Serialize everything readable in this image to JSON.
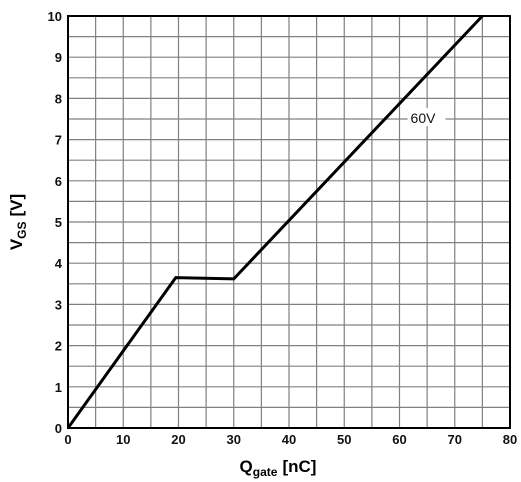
{
  "chart_data": {
    "type": "line",
    "xlabel": {
      "main": "Q",
      "sub": "gate",
      "unit": "[nC]"
    },
    "ylabel": {
      "main": "V",
      "sub": "GS",
      "unit": "[V]"
    },
    "xlim": [
      0,
      80
    ],
    "ylim": [
      0,
      10
    ],
    "x_ticks": [
      0,
      10,
      20,
      30,
      40,
      50,
      60,
      70,
      80
    ],
    "y_ticks": [
      0,
      1,
      2,
      3,
      4,
      5,
      6,
      7,
      8,
      9,
      10
    ],
    "x_minor_step": 5,
    "y_minor_step": 0.5,
    "grid": true,
    "series": [
      {
        "x": [
          0,
          19.5,
          30,
          75
        ],
        "y": [
          0,
          3.65,
          3.62,
          10
        ]
      }
    ],
    "annotations": [
      {
        "text": "60V",
        "x": 62,
        "y": 7.4
      }
    ],
    "colors": {
      "line": "#000000",
      "grid": "#808080",
      "axis": "#000000"
    }
  }
}
